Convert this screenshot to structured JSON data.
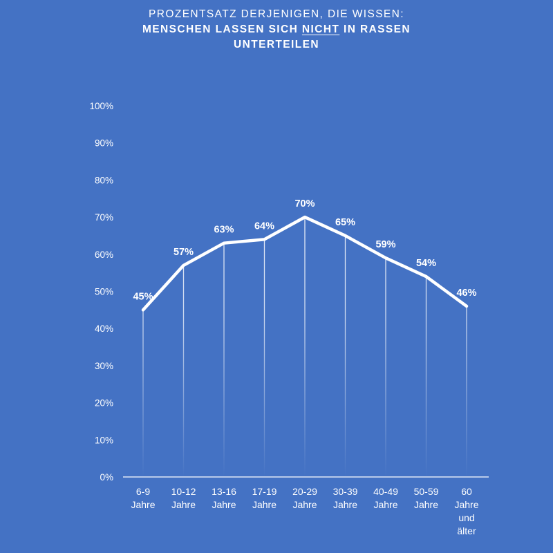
{
  "colors": {
    "background": "#4472c4",
    "line": "#ffffff",
    "text": "#ffffff"
  },
  "chart_data": {
    "type": "line",
    "title": {
      "line1": "PROZENTSATZ DERJENIGEN, DIE WISSEN:",
      "line2_before": "MENSCHEN LASSEN SICH ",
      "line2_emphasis": "NICHT",
      "line2_after": " IN RASSEN",
      "line3": "UNTERTEILEN"
    },
    "categories": [
      [
        "6-9",
        "Jahre"
      ],
      [
        "10-12",
        "Jahre"
      ],
      [
        "13-16",
        "Jahre"
      ],
      [
        "17-19",
        "Jahre"
      ],
      [
        "20-29",
        "Jahre"
      ],
      [
        "30-39",
        "Jahre"
      ],
      [
        "40-49",
        "Jahre"
      ],
      [
        "50-59",
        "Jahre"
      ],
      [
        "60",
        "Jahre",
        "und",
        "älter"
      ]
    ],
    "values": [
      45,
      57,
      63,
      64,
      70,
      65,
      59,
      54,
      46
    ],
    "data_labels": [
      "45%",
      "57%",
      "63%",
      "64%",
      "70%",
      "65%",
      "59%",
      "54%",
      "46%"
    ],
    "y_ticks": [
      "0%",
      "10%",
      "20%",
      "30%",
      "40%",
      "50%",
      "60%",
      "70%",
      "80%",
      "90%",
      "100%"
    ],
    "ylim": [
      0,
      100
    ],
    "grid": false,
    "drop_lines": true
  }
}
